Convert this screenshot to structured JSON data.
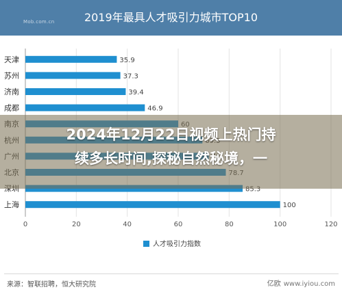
{
  "header": {
    "logo_text": "Mob.com.cn",
    "title": "2019年最具人才吸引力城市TOP10"
  },
  "overlay": {
    "line1": "2024年12月22日视频上热门持",
    "line2": "续多长时间,探秘自然秘境，一"
  },
  "footer": {
    "source": "来源：智联招聘，恒大研究院",
    "watermark_brand": "亿欧",
    "watermark_url": "www.iyiou.com"
  },
  "colors": {
    "bar": "#1f8fd0",
    "header_bg": "#4f7fa8",
    "grid": "#e3e3e3"
  },
  "chart_data": {
    "type": "bar",
    "orientation": "horizontal",
    "title": "2019年最具人才吸引力城市TOP10",
    "categories": [
      "天津",
      "苏州",
      "济南",
      "成都",
      "南京",
      "杭州",
      "广州",
      "北京",
      "深圳",
      "上海"
    ],
    "series": [
      {
        "name": "人才吸引力指数",
        "values": [
          35.9,
          37.3,
          39.4,
          46.9,
          60.0,
          69.5,
          72.0,
          78.7,
          85.3,
          100
        ]
      }
    ],
    "xticks": [
      "0",
      "20",
      "40",
      "60",
      "80",
      "100",
      "120"
    ],
    "xlim": [
      0,
      120
    ],
    "grid": true,
    "legend_position": "bottom"
  }
}
